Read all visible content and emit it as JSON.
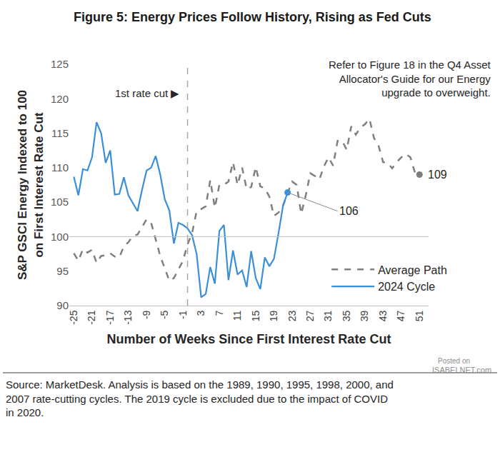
{
  "chart_data": {
    "type": "line",
    "title": "Figure 5: Energy Prices Follow History, Rising as Fed Cuts",
    "x_label": "Number of Weeks Since First Interest Rate Cut",
    "y_label": [
      "S&P GSCI Energy Indexed to 100",
      "on First Interest Rate Cut"
    ],
    "note": [
      "Refer to Figure 18 in the Q4 Asset",
      "Allocator's Guide for our Energy",
      "upgrade to overweight."
    ],
    "source": [
      "Source: MarketDesk. Analysis is based on the 1989, 1990, 1995, 1998, 2000, and",
      "2007 rate-cutting cycles. The 2019 cycle is excluded due to the impact of COVID",
      "in 2020."
    ],
    "watermark": [
      "Posted on",
      "ISABELNET.com"
    ],
    "rate_cut": {
      "x": 0,
      "label": "1st rate cut ▶"
    },
    "baseline": 100,
    "x": [
      -25,
      -24,
      -23,
      -22,
      -21,
      -20,
      -19,
      -18,
      -17,
      -16,
      -15,
      -14,
      -13,
      -12,
      -11,
      -10,
      -9,
      -8,
      -7,
      -6,
      -5,
      -4,
      -3,
      -2,
      -1,
      0,
      1,
      2,
      3,
      4,
      5,
      6,
      7,
      8,
      9,
      10,
      11,
      12,
      13,
      14,
      15,
      16,
      17,
      18,
      19,
      20,
      21,
      22,
      23,
      24,
      25,
      26,
      27,
      28,
      29,
      30,
      31,
      32,
      33,
      34,
      35,
      36,
      37,
      38,
      39,
      40,
      41,
      42,
      43,
      44,
      45,
      46,
      47,
      48,
      49,
      50,
      51
    ],
    "series": [
      {
        "name": "Average Path",
        "color": "#7f7f7f",
        "line_style": "dash",
        "values": [
          97.6,
          96.5,
          98.2,
          97.7,
          98.1,
          96.2,
          97.2,
          97.3,
          97.6,
          97.1,
          97,
          98.6,
          99.2,
          100.1,
          100.3,
          101.4,
          102.5,
          102,
          99.5,
          97.2,
          95.4,
          93.6,
          94,
          95.3,
          96.5,
          98.9,
          100.5,
          103.7,
          104,
          104.4,
          108.2,
          104.2,
          107.5,
          107.5,
          108,
          110.8,
          107.5,
          110,
          106.9,
          107.2,
          110.1,
          107.3,
          107,
          105.8,
          103,
          103.5,
          104.5,
          106.3,
          108,
          107.5,
          103.3,
          106,
          109.2,
          108.8,
          108.3,
          110.2,
          111.5,
          110.3,
          113.9,
          113.9,
          112.6,
          116,
          114.8,
          115.8,
          116.3,
          117.1,
          114.3,
          113.2,
          110.8,
          110.7,
          109.9,
          110.8,
          111.5,
          112,
          111.5,
          109.3,
          109
        ]
      },
      {
        "name": "2024 Cycle",
        "color": "#3a8fd9",
        "line_style": "solid",
        "values": [
          108.7,
          106,
          109.8,
          109.6,
          111.5,
          116.6,
          115,
          110.7,
          112.5,
          106.1,
          106.2,
          108.6,
          106,
          104.8,
          103.7,
          106.8,
          109.6,
          110,
          111.7,
          109,
          105.4,
          103.8,
          99,
          102,
          101.7,
          101.2,
          100.2,
          97.5,
          91.2,
          91.7,
          95.6,
          93.2,
          100.8,
          101.7,
          93.7,
          98,
          94.5,
          95.1,
          92.7,
          97.9,
          94,
          92.4,
          97,
          95.7,
          96.8,
          100.5,
          104.5,
          106.4,
          null,
          null,
          null,
          null,
          null,
          null,
          null,
          null,
          null,
          null,
          null,
          null,
          null,
          null,
          null,
          null,
          null,
          null,
          null,
          null,
          null,
          null,
          null,
          null,
          null,
          null,
          null,
          null,
          null
        ]
      }
    ],
    "end_labels": [
      {
        "series": "2024 Cycle",
        "x": 22,
        "y": 106.4,
        "text": "106"
      },
      {
        "series": "Average Path",
        "x": 51,
        "y": 109,
        "text": "109"
      }
    ],
    "xlim": [
      -26,
      53
    ],
    "xticks": [
      -25,
      -21,
      -17,
      -13,
      -9,
      -5,
      -1,
      3,
      7,
      11,
      15,
      19,
      23,
      27,
      31,
      35,
      39,
      43,
      47,
      51
    ],
    "ylim": [
      90,
      125
    ],
    "yticks": [
      90,
      95,
      100,
      105,
      110,
      115,
      120,
      125
    ],
    "grid": false,
    "legend": "lower right"
  }
}
